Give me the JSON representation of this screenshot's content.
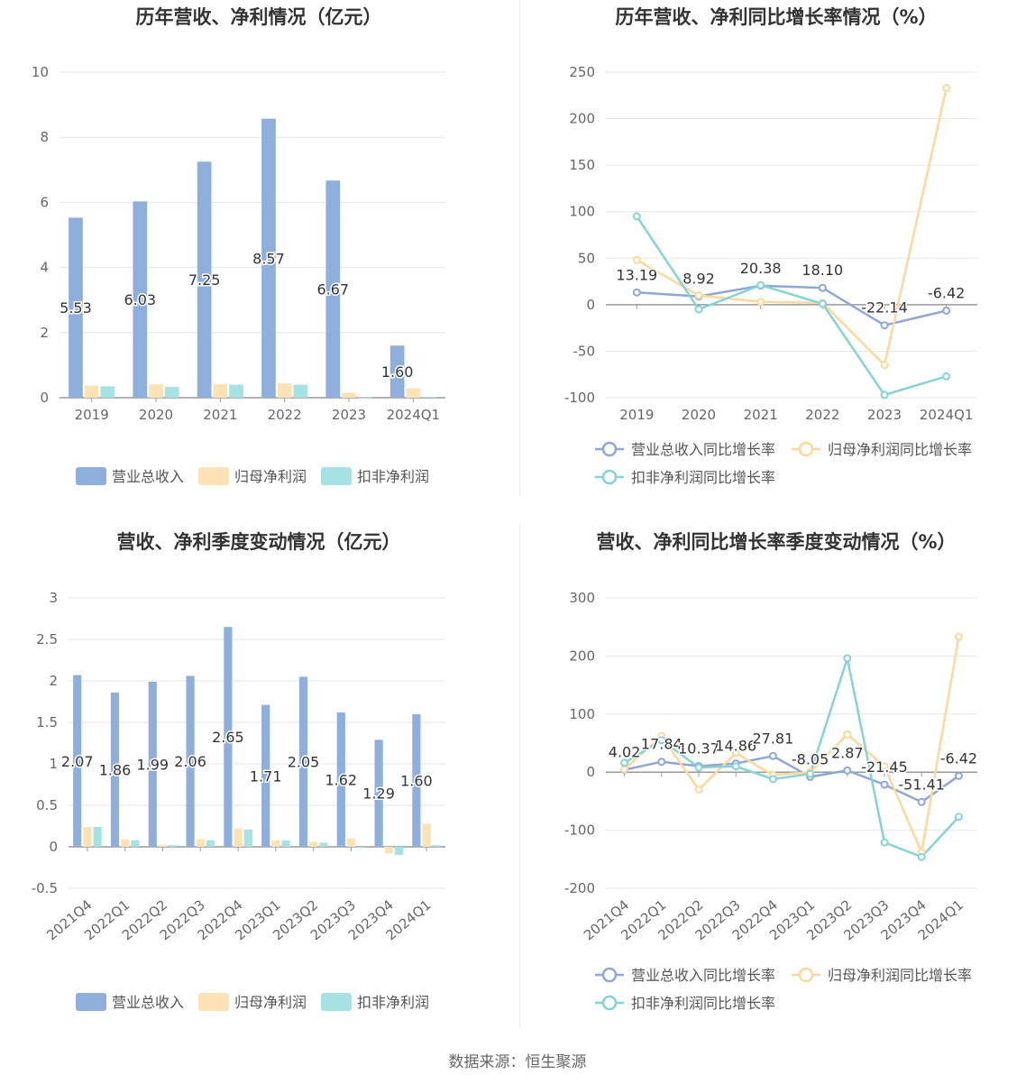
{
  "colors": {
    "revenue": "#8eaedc",
    "net_profit": "#fde2b6",
    "deducted_profit": "#a6e1e3",
    "revenue_line": "#8ea6d8",
    "net_profit_line": "#fcd89a",
    "deducted_profit_line": "#86d3d6",
    "grid": "#e6e6e6",
    "axis": "#999999",
    "title": "#333333",
    "tick": "#666666"
  },
  "footer": {
    "source": "数据来源：恒生聚源"
  },
  "chart_data": [
    {
      "type": "bar",
      "title": "历年营收、净利情况（亿元）",
      "categories": [
        "2019",
        "2020",
        "2021",
        "2022",
        "2023",
        "2024Q1"
      ],
      "series": [
        {
          "name": "营业总收入",
          "values": [
            5.53,
            6.03,
            7.25,
            8.57,
            6.67,
            1.6
          ],
          "labels": [
            "5.53",
            "6.03",
            "7.25",
            "8.57",
            "6.67",
            "1.60"
          ]
        },
        {
          "name": "归母净利润",
          "values": [
            0.37,
            0.41,
            0.42,
            0.44,
            0.15,
            0.29
          ]
        },
        {
          "name": "扣非净利润",
          "values": [
            0.35,
            0.33,
            0.4,
            0.4,
            0.01,
            0.03
          ]
        }
      ],
      "ylim": [
        0,
        10
      ],
      "yticks": [
        "0",
        "2",
        "4",
        "6",
        "8",
        "10"
      ],
      "legend": "bottom"
    },
    {
      "type": "line",
      "title": "历年营收、净利同比增长率情况（%）",
      "categories": [
        "2019",
        "2020",
        "2021",
        "2022",
        "2023",
        "2024Q1"
      ],
      "series": [
        {
          "name": "营业总收入同比增长率",
          "values": [
            13.19,
            8.92,
            20.38,
            18.1,
            -22.14,
            -6.42
          ],
          "labels": [
            "13.19",
            "8.92",
            "20.38",
            "18.10",
            "-22.14",
            "-6.42"
          ]
        },
        {
          "name": "归母净利润同比增长率",
          "values": [
            48,
            10,
            3,
            2,
            -65,
            233
          ]
        },
        {
          "name": "扣非净利润同比增长率",
          "values": [
            95,
            -5,
            21,
            1,
            -97,
            -77
          ]
        }
      ],
      "ylim": [
        -100,
        250
      ],
      "yticks": [
        "-100",
        "-50",
        "0",
        "50",
        "100",
        "150",
        "200",
        "250"
      ],
      "legend": "bottom"
    },
    {
      "type": "bar",
      "title": "营收、净利季度变动情况（亿元）",
      "categories": [
        "2021Q4",
        "2022Q1",
        "2022Q2",
        "2022Q3",
        "2022Q4",
        "2023Q1",
        "2023Q2",
        "2023Q3",
        "2023Q4",
        "2024Q1"
      ],
      "series": [
        {
          "name": "营业总收入",
          "values": [
            2.07,
            1.86,
            1.99,
            2.06,
            2.65,
            1.71,
            2.05,
            1.62,
            1.29,
            1.6
          ],
          "labels": [
            "2.07",
            "1.86",
            "1.99",
            "2.06",
            "2.65",
            "1.71",
            "2.05",
            "1.62",
            "1.29",
            "1.60"
          ]
        },
        {
          "name": "归母净利润",
          "values": [
            0.24,
            0.09,
            0.02,
            0.09,
            0.22,
            0.08,
            0.06,
            0.1,
            -0.08,
            0.28
          ]
        },
        {
          "name": "扣非净利润",
          "values": [
            0.24,
            0.08,
            0.02,
            0.08,
            0.21,
            0.08,
            0.05,
            -0.01,
            -0.1,
            0.02
          ]
        }
      ],
      "ylim": [
        -0.5,
        3
      ],
      "yticks": [
        "-0.5",
        "0",
        "0.5",
        "1",
        "1.5",
        "2",
        "2.5",
        "3"
      ],
      "legend": "bottom"
    },
    {
      "type": "line",
      "title": "营收、净利同比增长率季度变动情况（%）",
      "categories": [
        "2021Q4",
        "2022Q1",
        "2022Q2",
        "2022Q3",
        "2022Q4",
        "2023Q1",
        "2023Q2",
        "2023Q3",
        "2023Q4",
        "2024Q1"
      ],
      "series": [
        {
          "name": "营业总收入同比增长率",
          "values": [
            4.02,
            17.84,
            10.37,
            14.86,
            27.81,
            -8.05,
            2.87,
            -21.45,
            -51.41,
            -6.42
          ],
          "labels": [
            "4.02",
            "17.84",
            "10.37",
            "14.86",
            "27.81",
            "-8.05",
            "2.87",
            "-21.45",
            "-51.41",
            "-6.42"
          ]
        },
        {
          "name": "归母净利润同比增长率",
          "values": [
            5,
            62,
            -30,
            33,
            -5,
            0,
            65,
            10,
            -138,
            233
          ]
        },
        {
          "name": "扣非净利润同比增长率",
          "values": [
            16,
            55,
            8,
            10,
            -12,
            -3,
            196,
            -121,
            -146,
            -77
          ]
        }
      ],
      "ylim": [
        -200,
        300
      ],
      "yticks": [
        "-200",
        "-100",
        "0",
        "100",
        "200",
        "300"
      ],
      "legend": "bottom"
    }
  ]
}
